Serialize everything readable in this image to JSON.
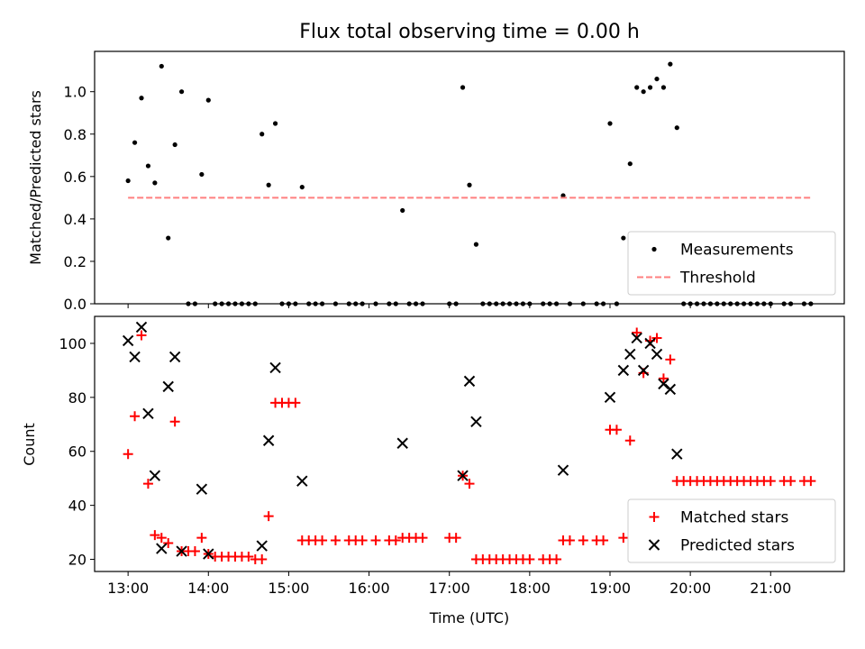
{
  "chart_data": [
    {
      "type": "scatter",
      "title": "Flux total observing time = 0.00 h",
      "xlabel": "",
      "ylabel": "Matched/Predicted stars",
      "xlim": [
        "12:35",
        "21:55"
      ],
      "ylim": [
        0.0,
        1.19
      ],
      "y_ticks": [
        "0.0",
        "0.2",
        "0.4",
        "0.6",
        "0.8",
        "1.0"
      ],
      "legend_position": "bottom-right",
      "series": [
        {
          "name": "Measurements",
          "marker": "dot",
          "color": "#000000",
          "points": [
            [
              "13:00",
              0.58
            ],
            [
              "13:05",
              0.76
            ],
            [
              "13:10",
              0.97
            ],
            [
              "13:15",
              0.65
            ],
            [
              "13:20",
              0.57
            ],
            [
              "13:25",
              1.12
            ],
            [
              "13:30",
              0.31
            ],
            [
              "13:35",
              0.75
            ],
            [
              "13:40",
              1.0
            ],
            [
              "13:45",
              0.0
            ],
            [
              "13:50",
              0.0
            ],
            [
              "13:55",
              0.61
            ],
            [
              "14:00",
              0.96
            ],
            [
              "14:05",
              0.0
            ],
            [
              "14:10",
              0.0
            ],
            [
              "14:15",
              0.0
            ],
            [
              "14:20",
              0.0
            ],
            [
              "14:25",
              0.0
            ],
            [
              "14:30",
              0.0
            ],
            [
              "14:35",
              0.0
            ],
            [
              "14:40",
              0.8
            ],
            [
              "14:45",
              0.56
            ],
            [
              "14:50",
              0.85
            ],
            [
              "14:55",
              0.0
            ],
            [
              "15:00",
              0.0
            ],
            [
              "15:05",
              0.0
            ],
            [
              "15:10",
              0.55
            ],
            [
              "15:15",
              0.0
            ],
            [
              "15:20",
              0.0
            ],
            [
              "15:25",
              0.0
            ],
            [
              "15:35",
              0.0
            ],
            [
              "15:45",
              0.0
            ],
            [
              "15:50",
              0.0
            ],
            [
              "15:55",
              0.0
            ],
            [
              "16:05",
              0.0
            ],
            [
              "16:15",
              0.0
            ],
            [
              "16:20",
              0.0
            ],
            [
              "16:25",
              0.44
            ],
            [
              "16:30",
              0.0
            ],
            [
              "16:35",
              0.0
            ],
            [
              "16:40",
              0.0
            ],
            [
              "17:00",
              0.0
            ],
            [
              "17:05",
              0.0
            ],
            [
              "17:10",
              1.02
            ],
            [
              "17:15",
              0.56
            ],
            [
              "17:20",
              0.28
            ],
            [
              "17:25",
              0.0
            ],
            [
              "17:30",
              0.0
            ],
            [
              "17:35",
              0.0
            ],
            [
              "17:40",
              0.0
            ],
            [
              "17:45",
              0.0
            ],
            [
              "17:50",
              0.0
            ],
            [
              "17:55",
              0.0
            ],
            [
              "18:00",
              0.0
            ],
            [
              "18:10",
              0.0
            ],
            [
              "18:15",
              0.0
            ],
            [
              "18:20",
              0.0
            ],
            [
              "18:25",
              0.51
            ],
            [
              "18:30",
              0.0
            ],
            [
              "18:40",
              0.0
            ],
            [
              "18:50",
              0.0
            ],
            [
              "18:55",
              0.0
            ],
            [
              "19:00",
              0.85
            ],
            [
              "19:05",
              0.0
            ],
            [
              "19:10",
              0.31
            ],
            [
              "19:15",
              0.66
            ],
            [
              "19:20",
              1.02
            ],
            [
              "19:25",
              1.0
            ],
            [
              "19:30",
              1.02
            ],
            [
              "19:35",
              1.06
            ],
            [
              "19:40",
              1.02
            ],
            [
              "19:45",
              1.13
            ],
            [
              "19:50",
              0.83
            ],
            [
              "19:55",
              0.0
            ],
            [
              "20:00",
              0.0
            ],
            [
              "20:05",
              0.0
            ],
            [
              "20:10",
              0.0
            ],
            [
              "20:15",
              0.0
            ],
            [
              "20:20",
              0.0
            ],
            [
              "20:25",
              0.0
            ],
            [
              "20:30",
              0.0
            ],
            [
              "20:35",
              0.0
            ],
            [
              "20:40",
              0.0
            ],
            [
              "20:45",
              0.0
            ],
            [
              "20:50",
              0.0
            ],
            [
              "20:55",
              0.0
            ],
            [
              "21:00",
              0.0
            ],
            [
              "21:10",
              0.0
            ],
            [
              "21:15",
              0.0
            ],
            [
              "21:25",
              0.0
            ],
            [
              "21:30",
              0.0
            ]
          ]
        },
        {
          "name": "Threshold",
          "marker": "dashed-line",
          "color": "#ff7f7f",
          "points": [
            [
              "13:00",
              0.5
            ],
            [
              "21:30",
              0.5
            ]
          ]
        }
      ]
    },
    {
      "type": "scatter",
      "title": "",
      "xlabel": "Time (UTC)",
      "ylabel": "Count",
      "xlim": [
        "12:35",
        "21:55"
      ],
      "ylim": [
        15.5,
        110
      ],
      "x_ticks": [
        "13:00",
        "14:00",
        "15:00",
        "16:00",
        "17:00",
        "18:00",
        "19:00",
        "20:00",
        "21:00"
      ],
      "y_ticks": [
        "20",
        "40",
        "60",
        "80",
        "100"
      ],
      "legend_position": "bottom-right",
      "series": [
        {
          "name": "Matched stars",
          "marker": "plus",
          "color": "#ff0000",
          "points": [
            [
              "13:00",
              59
            ],
            [
              "13:05",
              73
            ],
            [
              "13:10",
              103
            ],
            [
              "13:15",
              48
            ],
            [
              "13:20",
              29
            ],
            [
              "13:25",
              28
            ],
            [
              "13:30",
              26
            ],
            [
              "13:35",
              71
            ],
            [
              "13:40",
              23
            ],
            [
              "13:45",
              23
            ],
            [
              "13:50",
              23
            ],
            [
              "13:55",
              28
            ],
            [
              "14:00",
              22
            ],
            [
              "14:05",
              21
            ],
            [
              "14:10",
              21
            ],
            [
              "14:15",
              21
            ],
            [
              "14:20",
              21
            ],
            [
              "14:25",
              21
            ],
            [
              "14:30",
              21
            ],
            [
              "14:35",
              20
            ],
            [
              "14:40",
              20
            ],
            [
              "14:45",
              36
            ],
            [
              "14:50",
              78
            ],
            [
              "14:55",
              78
            ],
            [
              "15:00",
              78
            ],
            [
              "15:05",
              78
            ],
            [
              "15:10",
              27
            ],
            [
              "15:15",
              27
            ],
            [
              "15:20",
              27
            ],
            [
              "15:25",
              27
            ],
            [
              "15:35",
              27
            ],
            [
              "15:45",
              27
            ],
            [
              "15:50",
              27
            ],
            [
              "15:55",
              27
            ],
            [
              "16:05",
              27
            ],
            [
              "16:15",
              27
            ],
            [
              "16:20",
              27
            ],
            [
              "16:25",
              28
            ],
            [
              "16:30",
              28
            ],
            [
              "16:35",
              28
            ],
            [
              "16:40",
              28
            ],
            [
              "17:00",
              28
            ],
            [
              "17:05",
              28
            ],
            [
              "17:10",
              51
            ],
            [
              "17:15",
              48
            ],
            [
              "17:20",
              20
            ],
            [
              "17:25",
              20
            ],
            [
              "17:30",
              20
            ],
            [
              "17:35",
              20
            ],
            [
              "17:40",
              20
            ],
            [
              "17:45",
              20
            ],
            [
              "17:50",
              20
            ],
            [
              "17:55",
              20
            ],
            [
              "18:00",
              20
            ],
            [
              "18:10",
              20
            ],
            [
              "18:15",
              20
            ],
            [
              "18:20",
              20
            ],
            [
              "18:25",
              27
            ],
            [
              "18:30",
              27
            ],
            [
              "18:40",
              27
            ],
            [
              "18:50",
              27
            ],
            [
              "18:55",
              27
            ],
            [
              "19:00",
              68
            ],
            [
              "19:05",
              68
            ],
            [
              "19:10",
              28
            ],
            [
              "19:15",
              64
            ],
            [
              "19:20",
              104
            ],
            [
              "19:25",
              89
            ],
            [
              "19:30",
              101
            ],
            [
              "19:35",
              102
            ],
            [
              "19:40",
              87
            ],
            [
              "19:45",
              94
            ],
            [
              "19:50",
              49
            ],
            [
              "19:55",
              49
            ],
            [
              "20:00",
              49
            ],
            [
              "20:05",
              49
            ],
            [
              "20:10",
              49
            ],
            [
              "20:15",
              49
            ],
            [
              "20:20",
              49
            ],
            [
              "20:25",
              49
            ],
            [
              "20:30",
              49
            ],
            [
              "20:35",
              49
            ],
            [
              "20:40",
              49
            ],
            [
              "20:45",
              49
            ],
            [
              "20:50",
              49
            ],
            [
              "20:55",
              49
            ],
            [
              "21:00",
              49
            ],
            [
              "21:10",
              49
            ],
            [
              "21:15",
              49
            ],
            [
              "21:25",
              49
            ],
            [
              "21:30",
              49
            ]
          ]
        },
        {
          "name": "Predicted stars",
          "marker": "x",
          "color": "#000000",
          "points": [
            [
              "13:00",
              101
            ],
            [
              "13:05",
              95
            ],
            [
              "13:10",
              106
            ],
            [
              "13:15",
              74
            ],
            [
              "13:20",
              51
            ],
            [
              "13:25",
              24
            ],
            [
              "13:30",
              84
            ],
            [
              "13:35",
              95
            ],
            [
              "13:40",
              23
            ],
            [
              "13:55",
              46
            ],
            [
              "14:00",
              22
            ],
            [
              "14:40",
              25
            ],
            [
              "14:45",
              64
            ],
            [
              "14:50",
              91
            ],
            [
              "15:10",
              49
            ],
            [
              "16:25",
              63
            ],
            [
              "17:10",
              51
            ],
            [
              "17:15",
              86
            ],
            [
              "17:20",
              71
            ],
            [
              "18:25",
              53
            ],
            [
              "19:00",
              80
            ],
            [
              "19:10",
              90
            ],
            [
              "19:15",
              96
            ],
            [
              "19:20",
              102
            ],
            [
              "19:25",
              90
            ],
            [
              "19:30",
              100
            ],
            [
              "19:35",
              96
            ],
            [
              "19:40",
              85
            ],
            [
              "19:45",
              83
            ],
            [
              "19:50",
              59
            ]
          ]
        }
      ]
    }
  ]
}
